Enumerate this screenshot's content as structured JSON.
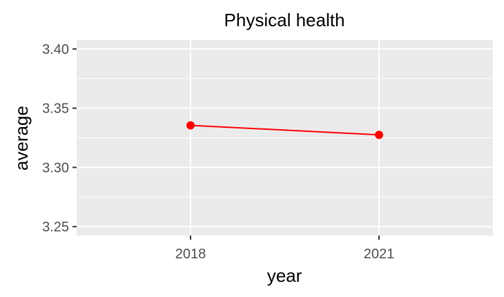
{
  "chart_data": {
    "type": "line",
    "title": "Physical health",
    "xlabel": "year",
    "ylabel": "average",
    "x": [
      "2018",
      "2021"
    ],
    "series": [
      {
        "values": [
          3.3355,
          3.3275
        ]
      }
    ],
    "ylim": [
      3.2425,
      3.4075
    ],
    "y_ticks": [
      "3.25",
      "3.30",
      "3.35",
      "3.40"
    ],
    "y_tick_values": [
      3.25,
      3.3,
      3.35,
      3.4
    ],
    "grid": true,
    "legend": "none",
    "colors": {
      "panel": "#ebebeb",
      "grid": "#ffffff",
      "series": "#ff0000",
      "tick_text": "#4d4d4d",
      "tick_mark": "#333333"
    }
  }
}
